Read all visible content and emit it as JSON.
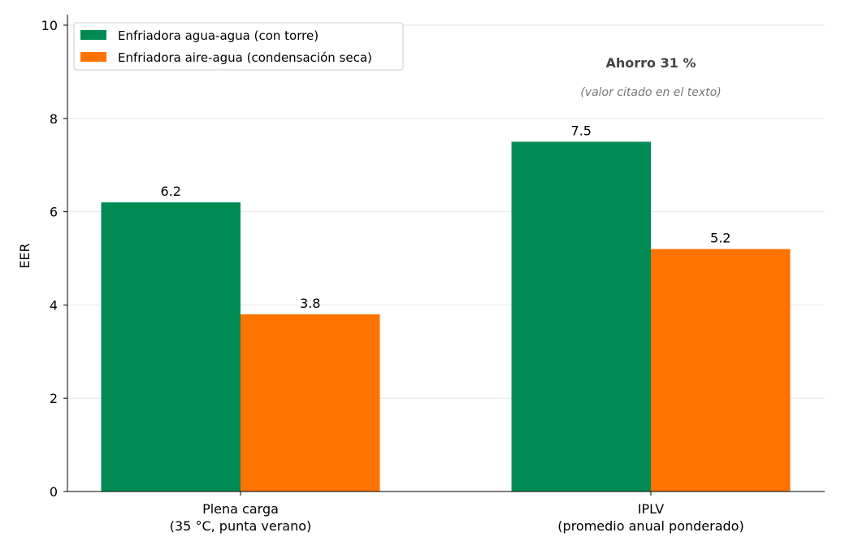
{
  "chart_data": {
    "type": "bar",
    "categories": [
      [
        "Plena carga",
        "(35 °C, punta verano)"
      ],
      [
        "IPLV",
        "(promedio anual ponderado)"
      ]
    ],
    "series": [
      {
        "name": "Enfriadora agua-agua (con torre)",
        "values": [
          6.2,
          7.5
        ],
        "color": "#008B55"
      },
      {
        "name": "Enfriadora aire-agua (condensación seca)",
        "values": [
          3.8,
          5.2
        ],
        "color": "#FF7300"
      }
    ],
    "data_labels": [
      [
        "6.2",
        "7.5"
      ],
      [
        "3.8",
        "5.2"
      ]
    ],
    "ylabel": "EER",
    "xlabel": "",
    "ylim": [
      0,
      10
    ],
    "yticks": [
      0,
      2,
      4,
      6,
      8,
      10
    ],
    "grid": "horizontal",
    "legend_placement": "top-left",
    "annotation": {
      "title": "Ahorro 31 %",
      "subtitle": "(valor citado en el texto)",
      "title_color": "#444444",
      "subtitle_color": "#777777"
    }
  }
}
